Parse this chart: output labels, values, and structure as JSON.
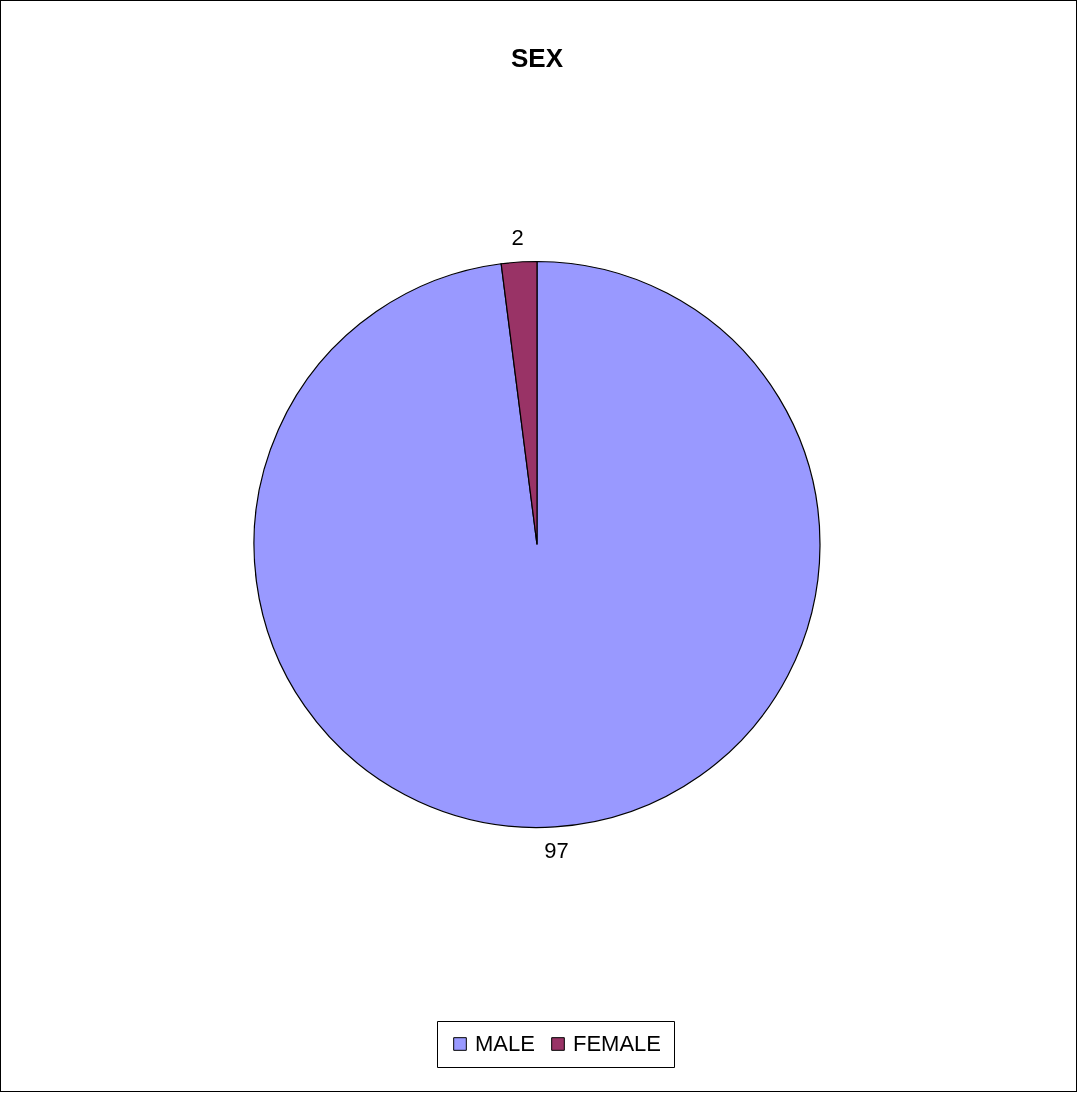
{
  "chart_data": {
    "type": "pie",
    "title": "SEX",
    "categories": [
      "MALE",
      "FEMALE"
    ],
    "values": [
      97,
      2
    ],
    "colors": [
      "#9999ff",
      "#993366"
    ],
    "data_labels": true,
    "legend": "bottom"
  }
}
